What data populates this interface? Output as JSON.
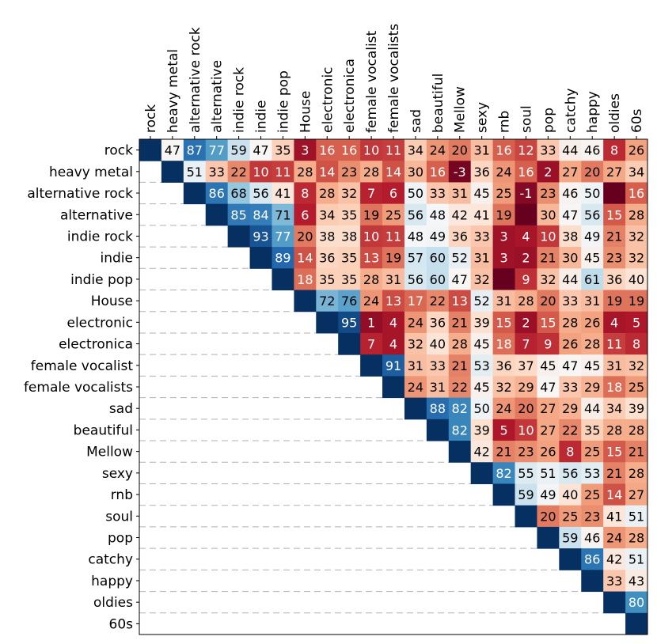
{
  "chart_data": {
    "type": "heatmap",
    "title": "",
    "labels": [
      "rock",
      "heavy metal",
      "alternative rock",
      "alternative",
      "indie rock",
      "indie",
      "indie pop",
      "House",
      "electronic",
      "electronica",
      "female vocalist",
      "female vocalists",
      "sad",
      "beautiful",
      "Mellow",
      "sexy",
      "rnb",
      "soul",
      "pop",
      "catchy",
      "happy",
      "oldies",
      "60s"
    ],
    "colormap": "RdBu",
    "value_range": [
      -5,
      100
    ],
    "matrix": [
      [
        null,
        47,
        87,
        77,
        59,
        47,
        35,
        3,
        16,
        16,
        10,
        11,
        34,
        24,
        20,
        31,
        16,
        12,
        33,
        44,
        46,
        8,
        26
      ],
      [
        null,
        null,
        51,
        33,
        22,
        10,
        11,
        28,
        14,
        23,
        28,
        14,
        30,
        16,
        -3,
        36,
        24,
        16,
        2,
        27,
        20,
        27,
        34
      ],
      [
        null,
        null,
        null,
        86,
        68,
        56,
        41,
        8,
        28,
        32,
        7,
        6,
        50,
        33,
        31,
        45,
        25,
        -1,
        23,
        46,
        50,
        null,
        16
      ],
      [
        null,
        null,
        null,
        null,
        85,
        84,
        71,
        6,
        34,
        35,
        19,
        25,
        56,
        48,
        42,
        41,
        19,
        null,
        30,
        47,
        56,
        15,
        28
      ],
      [
        null,
        null,
        null,
        null,
        null,
        93,
        77,
        20,
        38,
        38,
        10,
        11,
        48,
        49,
        36,
        33,
        3,
        4,
        10,
        38,
        49,
        21,
        32
      ],
      [
        null,
        null,
        null,
        null,
        null,
        null,
        89,
        14,
        36,
        35,
        13,
        19,
        57,
        60,
        52,
        31,
        3,
        2,
        21,
        30,
        45,
        23,
        32
      ],
      [
        null,
        null,
        null,
        null,
        null,
        null,
        null,
        18,
        35,
        35,
        28,
        31,
        56,
        60,
        47,
        32,
        null,
        9,
        32,
        44,
        61,
        36,
        40
      ],
      [
        null,
        null,
        null,
        null,
        null,
        null,
        null,
        null,
        72,
        76,
        24,
        13,
        17,
        22,
        13,
        52,
        31,
        28,
        20,
        33,
        31,
        19,
        19
      ],
      [
        null,
        null,
        null,
        null,
        null,
        null,
        null,
        null,
        null,
        95,
        1,
        4,
        24,
        36,
        21,
        39,
        15,
        2,
        15,
        28,
        26,
        4,
        5
      ],
      [
        null,
        null,
        null,
        null,
        null,
        null,
        null,
        null,
        null,
        null,
        7,
        4,
        32,
        40,
        28,
        45,
        18,
        7,
        9,
        26,
        28,
        11,
        8
      ],
      [
        null,
        null,
        null,
        null,
        null,
        null,
        null,
        null,
        null,
        null,
        null,
        91,
        31,
        33,
        21,
        53,
        36,
        37,
        45,
        47,
        45,
        31,
        32
      ],
      [
        null,
        null,
        null,
        null,
        null,
        null,
        null,
        null,
        null,
        null,
        null,
        null,
        24,
        31,
        22,
        45,
        32,
        29,
        47,
        33,
        29,
        18,
        25
      ],
      [
        null,
        null,
        null,
        null,
        null,
        null,
        null,
        null,
        null,
        null,
        null,
        null,
        null,
        88,
        82,
        50,
        24,
        20,
        27,
        29,
        44,
        34,
        39
      ],
      [
        null,
        null,
        null,
        null,
        null,
        null,
        null,
        null,
        null,
        null,
        null,
        null,
        null,
        null,
        82,
        39,
        5,
        10,
        27,
        22,
        35,
        28,
        28
      ],
      [
        null,
        null,
        null,
        null,
        null,
        null,
        null,
        null,
        null,
        null,
        null,
        null,
        null,
        null,
        null,
        42,
        21,
        23,
        26,
        8,
        25,
        15,
        21
      ],
      [
        null,
        null,
        null,
        null,
        null,
        null,
        null,
        null,
        null,
        null,
        null,
        null,
        null,
        null,
        null,
        null,
        82,
        55,
        51,
        56,
        53,
        21,
        28
      ],
      [
        null,
        null,
        null,
        null,
        null,
        null,
        null,
        null,
        null,
        null,
        null,
        null,
        null,
        null,
        null,
        null,
        null,
        59,
        49,
        40,
        25,
        14,
        27
      ],
      [
        null,
        null,
        null,
        null,
        null,
        null,
        null,
        null,
        null,
        null,
        null,
        null,
        null,
        null,
        null,
        null,
        null,
        null,
        20,
        25,
        23,
        41,
        51
      ],
      [
        null,
        null,
        null,
        null,
        null,
        null,
        null,
        null,
        null,
        null,
        null,
        null,
        null,
        null,
        null,
        null,
        null,
        null,
        null,
        59,
        46,
        24,
        28
      ],
      [
        null,
        null,
        null,
        null,
        null,
        null,
        null,
        null,
        null,
        null,
        null,
        null,
        null,
        null,
        null,
        null,
        null,
        null,
        null,
        null,
        86,
        42,
        51
      ],
      [
        null,
        null,
        null,
        null,
        null,
        null,
        null,
        null,
        null,
        null,
        null,
        null,
        null,
        null,
        null,
        null,
        null,
        null,
        null,
        null,
        null,
        33,
        43
      ],
      [
        null,
        null,
        null,
        null,
        null,
        null,
        null,
        null,
        null,
        null,
        null,
        null,
        null,
        null,
        null,
        null,
        null,
        null,
        null,
        null,
        null,
        null,
        80
      ],
      [
        null,
        null,
        null,
        null,
        null,
        null,
        null,
        null,
        null,
        null,
        null,
        null,
        null,
        null,
        null,
        null,
        null,
        null,
        null,
        null,
        null,
        null,
        null
      ]
    ],
    "hidden_label_cells": [
      [
        2,
        21
      ],
      [
        3,
        17
      ],
      [
        6,
        16
      ]
    ],
    "diagonal_color": "#053061",
    "row_separator": "dashed"
  }
}
